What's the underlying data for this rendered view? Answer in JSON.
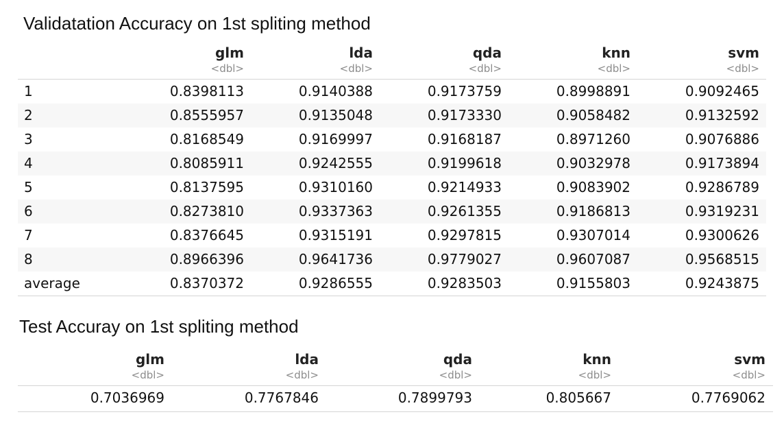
{
  "validation": {
    "title": "Validatation Accuracy on 1st spliting method",
    "columns": [
      {
        "name": "glm",
        "type": "<dbl>"
      },
      {
        "name": "lda",
        "type": "<dbl>"
      },
      {
        "name": "qda",
        "type": "<dbl>"
      },
      {
        "name": "knn",
        "type": "<dbl>"
      },
      {
        "name": "svm",
        "type": "<dbl>"
      }
    ],
    "rows": [
      {
        "label": "1",
        "values": [
          "0.8398113",
          "0.9140388",
          "0.9173759",
          "0.8998891",
          "0.9092465"
        ]
      },
      {
        "label": "2",
        "values": [
          "0.8555957",
          "0.9135048",
          "0.9173330",
          "0.9058482",
          "0.9132592"
        ]
      },
      {
        "label": "3",
        "values": [
          "0.8168549",
          "0.9169997",
          "0.9168187",
          "0.8971260",
          "0.9076886"
        ]
      },
      {
        "label": "4",
        "values": [
          "0.8085911",
          "0.9242555",
          "0.9199618",
          "0.9032978",
          "0.9173894"
        ]
      },
      {
        "label": "5",
        "values": [
          "0.8137595",
          "0.9310160",
          "0.9214933",
          "0.9083902",
          "0.9286789"
        ]
      },
      {
        "label": "6",
        "values": [
          "0.8273810",
          "0.9337363",
          "0.9261355",
          "0.9186813",
          "0.9319231"
        ]
      },
      {
        "label": "7",
        "values": [
          "0.8376645",
          "0.9315191",
          "0.9297815",
          "0.9307014",
          "0.9300626"
        ]
      },
      {
        "label": "8",
        "values": [
          "0.8966396",
          "0.9641736",
          "0.9779027",
          "0.9607087",
          "0.9568515"
        ]
      },
      {
        "label": "average",
        "values": [
          "0.8370372",
          "0.9286555",
          "0.9283503",
          "0.9155803",
          "0.9243875"
        ]
      }
    ]
  },
  "test": {
    "title": "Test Accuray on 1st spliting method",
    "columns": [
      {
        "name": "glm",
        "type": "<dbl>"
      },
      {
        "name": "lda",
        "type": "<dbl>"
      },
      {
        "name": "qda",
        "type": "<dbl>"
      },
      {
        "name": "knn",
        "type": "<dbl>"
      },
      {
        "name": "svm",
        "type": "<dbl>"
      }
    ],
    "rows": [
      {
        "values": [
          "0.7036969",
          "0.7767846",
          "0.7899793",
          "0.805667",
          "0.7769062"
        ]
      }
    ]
  }
}
